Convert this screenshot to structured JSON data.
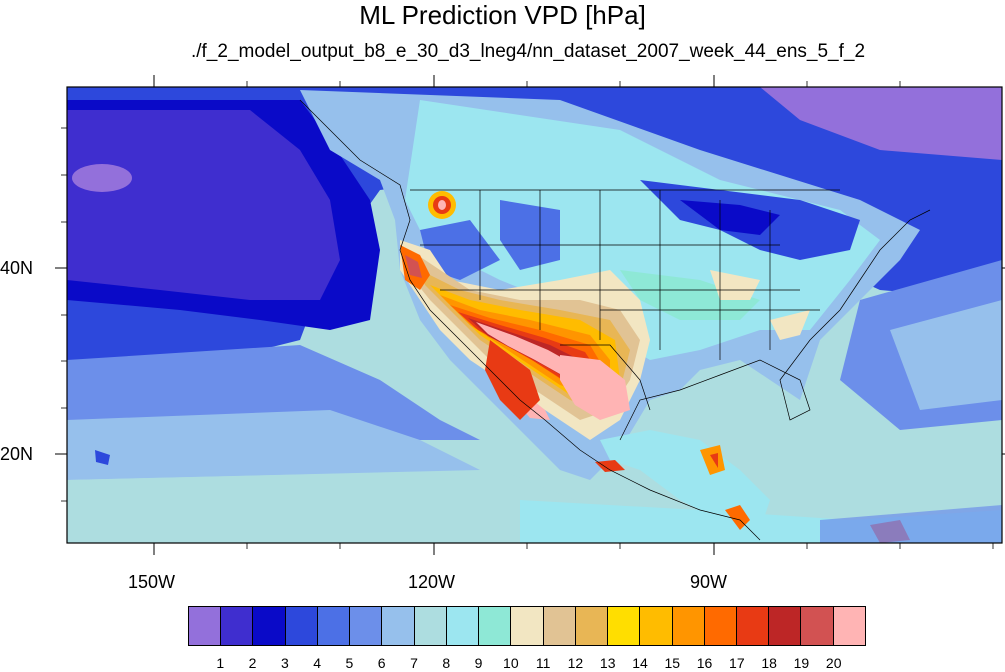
{
  "title": "ML Prediction VPD [hPa]",
  "subtitle": "./f_2_model_output_b8_e_30_d3_lneg4/nn_dataset_2007_week_44_ens_5_f_2",
  "axes": {
    "x_ticks": [
      "150W",
      "120W",
      "90W"
    ],
    "y_ticks": [
      "40N",
      "20N"
    ]
  },
  "colorbar": {
    "labels": [
      "1",
      "2",
      "3",
      "4",
      "5",
      "6",
      "7",
      "8",
      "9",
      "10",
      "11",
      "12",
      "13",
      "14",
      "15",
      "16",
      "17",
      "18",
      "19",
      "20"
    ],
    "colors": [
      "#9370db",
      "#3f2ecf",
      "#0a0ac8",
      "#2d48dc",
      "#4c70e6",
      "#6c8fea",
      "#96c0ec",
      "#addde0",
      "#9ce6f0",
      "#8ee8d6",
      "#f2e6c2",
      "#e1c394",
      "#e8b655",
      "#ffde00",
      "#ffbc00",
      "#ff9500",
      "#ff6a00",
      "#e83a14",
      "#bd2626",
      "#d25252",
      "#ffb4b4"
    ]
  }
}
